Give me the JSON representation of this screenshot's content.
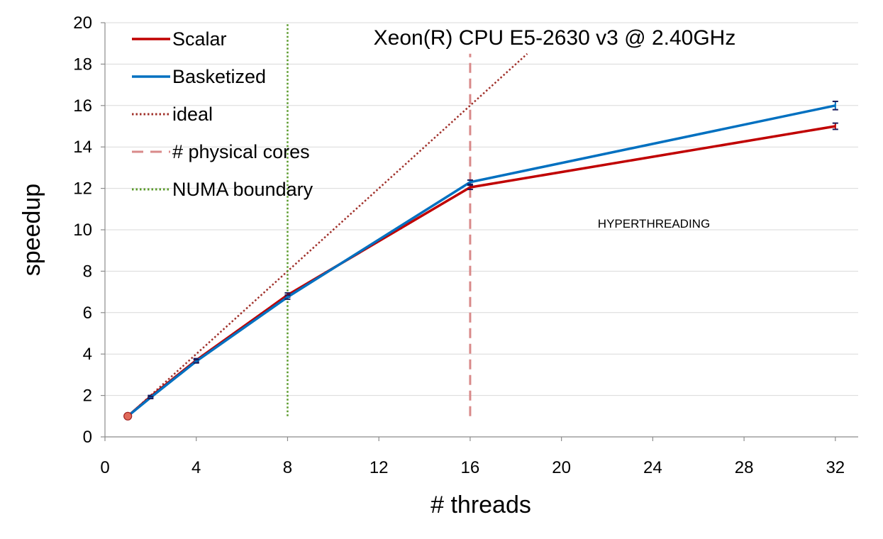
{
  "chart_data": {
    "type": "line",
    "title": "Xeon(R) CPU E5-2630 v3 @ 2.40GHz",
    "xlabel": "# threads",
    "ylabel": "speedup",
    "xlim": [
      0,
      33
    ],
    "ylim": [
      0,
      20
    ],
    "xticks": [
      0,
      4,
      8,
      12,
      16,
      20,
      24,
      28,
      32
    ],
    "yticks": [
      0,
      2,
      4,
      6,
      8,
      10,
      12,
      14,
      16,
      18,
      20
    ],
    "grid": "horizontal",
    "legend_position": "top-left",
    "annotation": "HYPERTHREADING",
    "series": [
      {
        "name": "Scalar",
        "color": "#c00000",
        "style": "solid",
        "x": [
          1,
          2,
          4,
          8,
          16,
          32
        ],
        "y": [
          1.0,
          1.95,
          3.7,
          6.85,
          12.05,
          15.0
        ],
        "error": [
          0.05,
          0.05,
          0.08,
          0.1,
          0.1,
          0.15
        ]
      },
      {
        "name": "Basketized",
        "color": "#0070c0",
        "style": "solid",
        "x": [
          1,
          2,
          4,
          8,
          16,
          32
        ],
        "y": [
          1.0,
          1.9,
          3.65,
          6.75,
          12.3,
          16.0
        ],
        "error": [
          0.05,
          0.05,
          0.08,
          0.1,
          0.1,
          0.2
        ]
      },
      {
        "name": "ideal",
        "color": "#a0302a",
        "style": "dotted",
        "x": [
          1,
          18.5
        ],
        "y": [
          1,
          18.5
        ]
      },
      {
        "name": "# physical cores",
        "color": "#d98a8a",
        "style": "dashed",
        "vline_x": 16,
        "y_range": [
          1,
          18.5
        ]
      },
      {
        "name": "NUMA boundary",
        "color": "#5a9a2a",
        "style": "dotted",
        "vline_x": 8,
        "y_range": [
          1,
          20
        ]
      }
    ]
  }
}
